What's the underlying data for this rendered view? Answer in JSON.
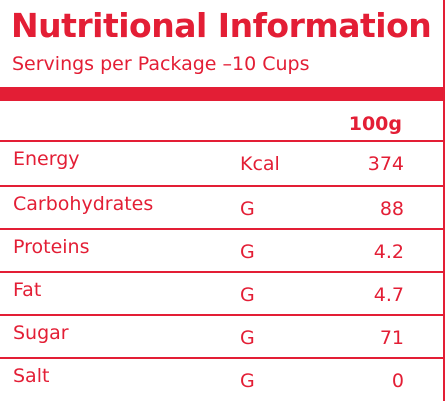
{
  "title": "Nutritional Information",
  "subtitle": "Servings per Package –10 Cups",
  "column_header": "100g",
  "rows": [
    {
      "name": "Energy",
      "unit": "Kcal",
      "value": "374"
    },
    {
      "name": "Carbohydrates",
      "unit": "G",
      "value": "88"
    },
    {
      "name": "Proteins",
      "unit": "G",
      "value": "4.2"
    },
    {
      "name": "Fat",
      "unit": "G",
      "value": "4.7"
    },
    {
      "name": "Sugar",
      "unit": "G",
      "value": "71"
    },
    {
      "name": "Salt",
      "unit": "G",
      "value": "0"
    }
  ],
  "colors": {
    "accent": "#e31e35",
    "background": "#ffffff"
  }
}
